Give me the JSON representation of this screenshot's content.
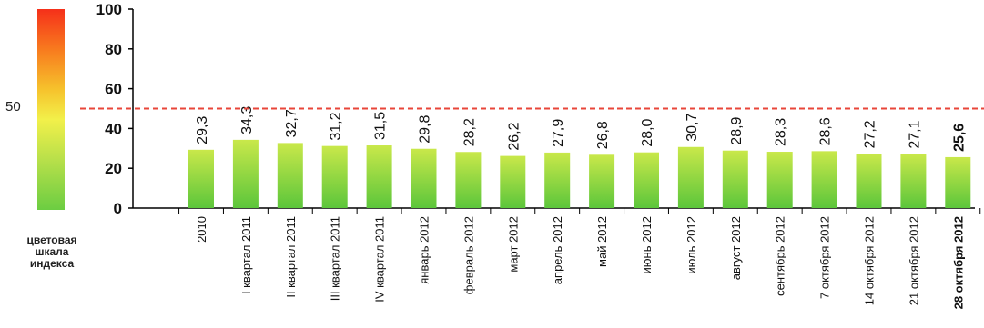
{
  "legend": {
    "title": "цветовая шкала индекса",
    "reference_value": "50",
    "colors": [
      "#f5301a",
      "#f87a1e",
      "#f6c22c",
      "#f2f04a",
      "#b8e04a",
      "#6ccd42"
    ]
  },
  "chart_data": {
    "type": "bar",
    "categories": [
      "2010",
      "I квартал 2011",
      "II квартал 2011",
      "III квартал 2011",
      "IV квартал 2011",
      "январь 2012",
      "февраль 2012",
      "март 2012",
      "апрель 2012",
      "май 2012",
      "июнь 2012",
      "июль 2012",
      "август 2012",
      "сентябрь 2012",
      "7 октября 2012",
      "14 октября 2012",
      "21 октября 2012",
      "28 октября 2012"
    ],
    "values": [
      29.3,
      34.3,
      32.7,
      31.2,
      31.5,
      29.8,
      28.2,
      26.2,
      27.9,
      26.8,
      28.0,
      30.7,
      28.9,
      28.3,
      28.6,
      27.2,
      27.1,
      25.6
    ],
    "value_labels": [
      "29,3",
      "34,3",
      "32,7",
      "31,2",
      "31,5",
      "29,8",
      "28,2",
      "26,2",
      "27,9",
      "26,8",
      "28,0",
      "30,7",
      "28,9",
      "28,3",
      "28,6",
      "27,2",
      "27,1",
      "25,6"
    ],
    "yticks": [
      0,
      20,
      40,
      60,
      80,
      100
    ],
    "ylim": [
      0,
      100
    ],
    "reference_line": 50,
    "highlight_last": true,
    "bar_colors": {
      "top": "#c9e84a",
      "bottom": "#5cc63b"
    },
    "reference_color": "#e8463a",
    "xlabel": "",
    "ylabel": ""
  }
}
